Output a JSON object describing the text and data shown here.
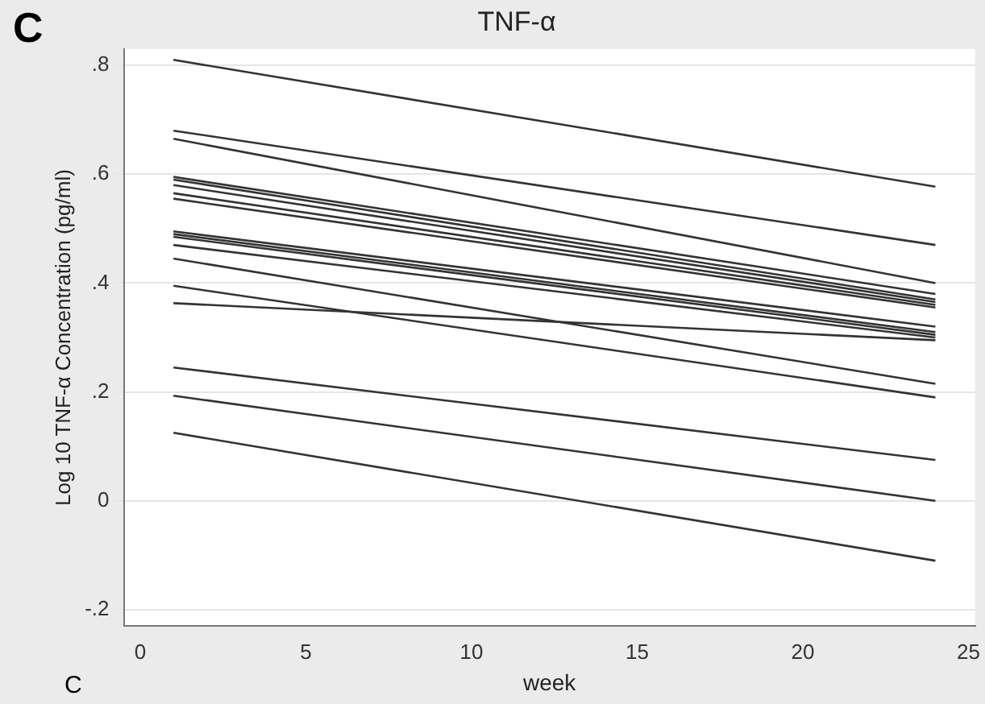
{
  "chart_data": {
    "type": "line",
    "title": "TNF-α",
    "xlabel": "week",
    "ylabel": "Log 10 TNF-α Concentration (pg/ml)",
    "annotations": [
      "C",
      "C"
    ],
    "x": [
      1,
      24
    ],
    "xlim": [
      -0.5,
      25.2
    ],
    "xticks": [
      0,
      5,
      10,
      15,
      20,
      25
    ],
    "ylim": [
      -0.23,
      0.83
    ],
    "yticks": [
      {
        "value": -0.2,
        "label": "-.2"
      },
      0,
      {
        "value": 0.2,
        "label": ".2"
      },
      {
        "value": 0.4,
        "label": ".4"
      },
      {
        "value": 0.6,
        "label": ".6"
      },
      {
        "value": 0.8,
        "label": ".8"
      }
    ],
    "grid": "y",
    "legend": false,
    "marker": "none",
    "line_style": "solid",
    "series": [
      {
        "color": "#333333",
        "values": [
          0.81,
          0.577
        ]
      },
      {
        "color": "#333333",
        "values": [
          0.68,
          0.47
        ]
      },
      {
        "color": "#333333",
        "values": [
          0.665,
          0.4
        ]
      },
      {
        "color": "#333333",
        "values": [
          0.595,
          0.38
        ]
      },
      {
        "color": "#333333",
        "values": [
          0.59,
          0.37
        ]
      },
      {
        "color": "#333333",
        "values": [
          0.58,
          0.365
        ]
      },
      {
        "color": "#333333",
        "values": [
          0.565,
          0.36
        ]
      },
      {
        "color": "#333333",
        "values": [
          0.555,
          0.355
        ]
      },
      {
        "color": "#333333",
        "values": [
          0.495,
          0.32
        ]
      },
      {
        "color": "#333333",
        "values": [
          0.49,
          0.31
        ]
      },
      {
        "color": "#333333",
        "values": [
          0.485,
          0.305
        ]
      },
      {
        "color": "#333333",
        "values": [
          0.47,
          0.3
        ]
      },
      {
        "color": "#333333",
        "values": [
          0.363,
          0.295
        ]
      },
      {
        "color": "#333333",
        "values": [
          0.445,
          0.215
        ]
      },
      {
        "color": "#333333",
        "values": [
          0.395,
          0.19
        ]
      },
      {
        "color": "#333333",
        "values": [
          0.245,
          0.075
        ]
      },
      {
        "color": "#333333",
        "values": [
          0.193,
          0.0
        ]
      },
      {
        "color": "#333333",
        "values": [
          0.125,
          -0.11
        ]
      }
    ]
  }
}
